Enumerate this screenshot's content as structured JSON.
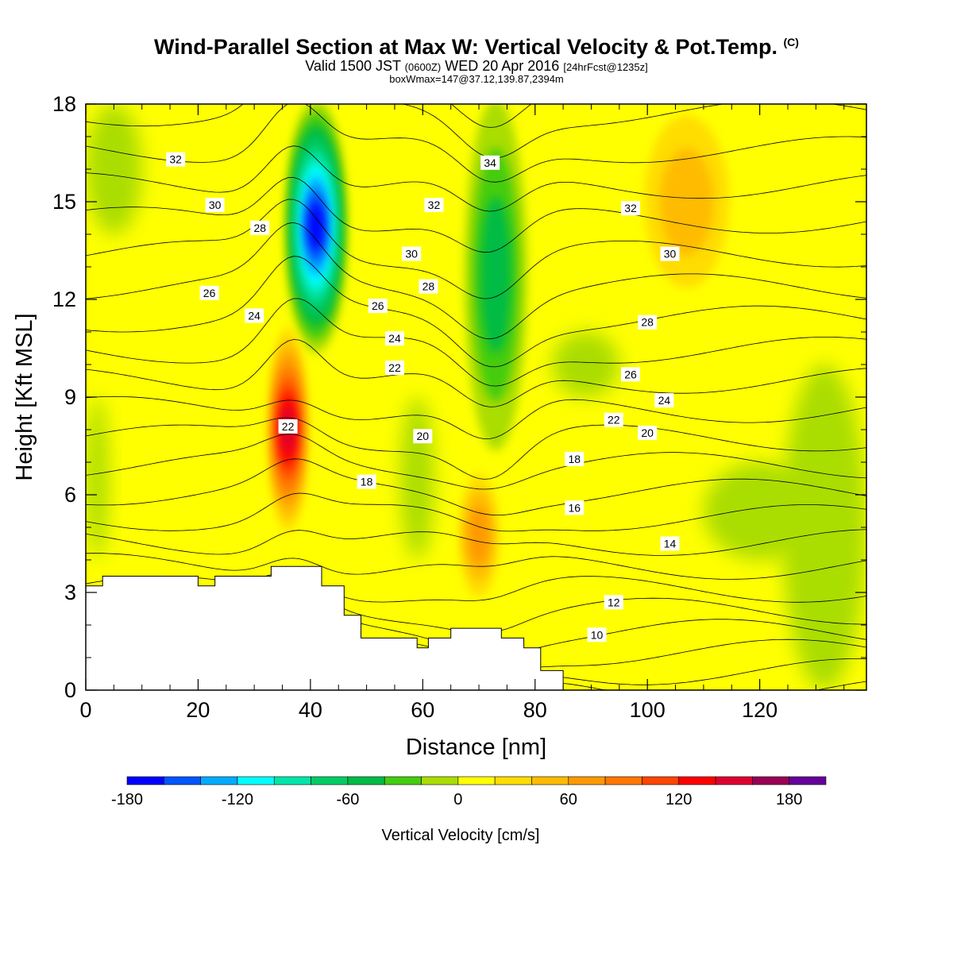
{
  "header": {
    "title": "Wind-Parallel Section at Max W: Vertical Velocity & Pot.Temp.",
    "title_mark": "(C)",
    "valid": "Valid 1500 JST",
    "valid_utc": "(0600Z)",
    "valid_date": "WED 20 Apr 2016",
    "forecast": "[24hrFcst@1235z]",
    "box": "boxWmax=147@37.12,139.87,2394m"
  },
  "chart_data": {
    "type": "heatmap",
    "title": "Wind-Parallel Section at Max W: Vertical Velocity & Pot.Temp.",
    "xlabel": "Distance [nm]",
    "ylabel": "Height [Kft MSL]",
    "xlim": [
      0,
      139
    ],
    "ylim": [
      0,
      18
    ],
    "x_ticks": [
      "0",
      "20",
      "40",
      "60",
      "80",
      "100",
      "120"
    ],
    "y_ticks": [
      "0",
      "3",
      "6",
      "9",
      "12",
      "15",
      "18"
    ],
    "colorbar": {
      "label": "Vertical Velocity [cm/s]",
      "range": [
        -180,
        200
      ],
      "tick_values": [
        "-180",
        "-120",
        "-60",
        "0",
        "60",
        "120",
        "180"
      ],
      "colors": [
        "#0000ff",
        "#0055ff",
        "#00aaff",
        "#00ffff",
        "#00e5aa",
        "#00cc66",
        "#00bb44",
        "#44cc11",
        "#aadd00",
        "#ffff00",
        "#ffdd00",
        "#ffbb00",
        "#ff9900",
        "#ff7700",
        "#ff4400",
        "#ff0000",
        "#dd0033",
        "#990055",
        "#660099"
      ]
    },
    "velocity_features": [
      {
        "kind": "downdraft",
        "x": [
          36,
          46
        ],
        "y": [
          10.5,
          18
        ],
        "min": -180
      },
      {
        "kind": "updraft",
        "x": [
          33,
          39
        ],
        "y": [
          5,
          11
        ],
        "max": 140
      },
      {
        "kind": "downdraft",
        "x": [
          68,
          78
        ],
        "y": [
          7.5,
          18
        ],
        "min": -75
      },
      {
        "kind": "updraft",
        "x": [
          67,
          73
        ],
        "y": [
          3,
          6.5
        ],
        "max": 60
      },
      {
        "kind": "updraft",
        "x": [
          100,
          114
        ],
        "y": [
          12.5,
          17.5
        ],
        "max": 50
      }
    ],
    "terrain": {
      "x": [
        0,
        3,
        3,
        20,
        20,
        23,
        23,
        33,
        33,
        42,
        42,
        46,
        46,
        49,
        49,
        59,
        59,
        61,
        61,
        65,
        65,
        74,
        74,
        78,
        78,
        81,
        81,
        85
      ],
      "y": [
        3.2,
        3.2,
        3.5,
        3.5,
        3.2,
        3.2,
        3.5,
        3.5,
        3.8,
        3.8,
        3.2,
        3.2,
        2.3,
        2.3,
        1.6,
        1.6,
        1.3,
        1.3,
        1.6,
        1.6,
        1.9,
        1.9,
        1.6,
        1.6,
        1.3,
        1.3,
        0.6,
        0.6
      ]
    },
    "theta_contours": [
      {
        "label": "10",
        "label_at": [
          91,
          1.7
        ]
      },
      {
        "label": "12",
        "label_at": [
          94,
          2.7
        ]
      },
      {
        "label": "14",
        "label_at": [
          104,
          4.5
        ]
      },
      {
        "label": "16",
        "label_at": [
          87,
          5.6
        ]
      },
      {
        "label": "18",
        "label_at": [
          50,
          6.4
        ]
      },
      {
        "label": "18",
        "label_at": [
          87,
          7.1
        ]
      },
      {
        "label": "20",
        "label_at": [
          60,
          7.8
        ]
      },
      {
        "label": "20",
        "label_at": [
          100,
          7.9
        ]
      },
      {
        "label": "22",
        "label_at": [
          36,
          8.1
        ]
      },
      {
        "label": "22",
        "label_at": [
          55,
          9.9
        ]
      },
      {
        "label": "22",
        "label_at": [
          94,
          8.3
        ]
      },
      {
        "label": "24",
        "label_at": [
          30,
          11.5
        ]
      },
      {
        "label": "24",
        "label_at": [
          55,
          10.8
        ]
      },
      {
        "label": "24",
        "label_at": [
          103,
          8.9
        ]
      },
      {
        "label": "26",
        "label_at": [
          22,
          12.2
        ]
      },
      {
        "label": "26",
        "label_at": [
          52,
          11.8
        ]
      },
      {
        "label": "26",
        "label_at": [
          97,
          9.7
        ]
      },
      {
        "label": "28",
        "label_at": [
          31,
          14.2
        ]
      },
      {
        "label": "28",
        "label_at": [
          61,
          12.4
        ]
      },
      {
        "label": "28",
        "label_at": [
          100,
          11.3
        ]
      },
      {
        "label": "30",
        "label_at": [
          23,
          14.9
        ]
      },
      {
        "label": "30",
        "label_at": [
          58,
          13.4
        ]
      },
      {
        "label": "30",
        "label_at": [
          104,
          13.4
        ]
      },
      {
        "label": "32",
        "label_at": [
          16,
          16.3
        ]
      },
      {
        "label": "32",
        "label_at": [
          62,
          14.9
        ]
      },
      {
        "label": "32",
        "label_at": [
          97,
          14.8
        ]
      },
      {
        "label": "34",
        "label_at": [
          72,
          16.2
        ]
      }
    ]
  }
}
